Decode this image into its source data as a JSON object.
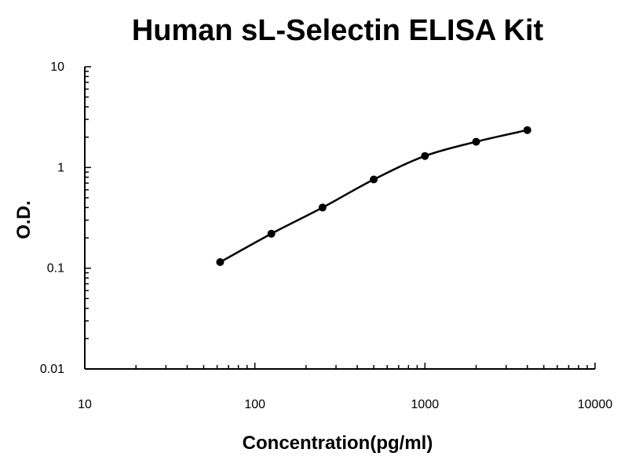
{
  "chart_data": {
    "type": "line",
    "title": "Human sL-Selectin ELISA Kit",
    "xlabel": "Concentration(pg/ml)",
    "ylabel": "O.D.",
    "xscale": "log",
    "yscale": "log",
    "xlim": [
      10,
      10000
    ],
    "ylim": [
      0.01,
      10
    ],
    "grid": false,
    "x_tick_labels": [
      "10",
      "100",
      "1000",
      "10000"
    ],
    "y_tick_labels": [
      "0.01",
      "0.1",
      "1",
      "10"
    ],
    "series": [
      {
        "x": [
          62.5,
          125,
          250,
          500,
          1000,
          2000,
          4000
        ],
        "y": [
          0.115,
          0.22,
          0.4,
          0.76,
          1.3,
          1.8,
          2.35
        ],
        "color": "#000000",
        "marker": "circle",
        "line": "smooth"
      }
    ]
  }
}
